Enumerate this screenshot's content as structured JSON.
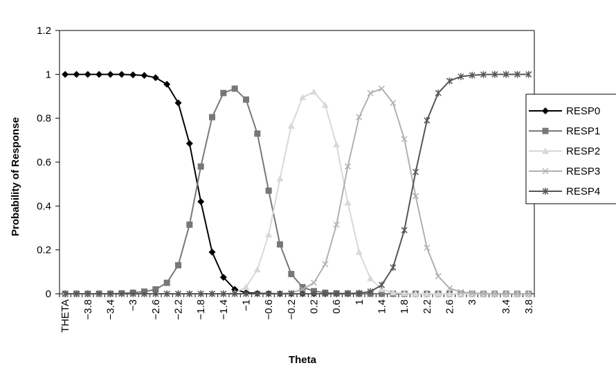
{
  "chart_data": {
    "type": "line",
    "xlabel": "Theta",
    "ylabel": "Probability of Response",
    "ylim": [
      0,
      1.2
    ],
    "y_ticks": [
      "0",
      "0.2",
      "0.4",
      "0.6",
      "0.8",
      "1",
      "1.2"
    ],
    "x_tick_labels": [
      "THETA",
      "−3.8",
      "−3.4",
      "−3",
      "−2.6",
      "−2.2",
      "−1.8",
      "−1.4",
      "−1",
      "−0.6",
      "−0.2",
      "0.2",
      "0.6",
      "1",
      "1.4",
      "1.8",
      "2.2",
      "2.6",
      "3",
      "3.4",
      "3.8"
    ],
    "x_tick_positions": [
      0,
      2,
      4,
      6,
      8,
      10,
      12,
      14,
      16,
      18,
      20,
      22,
      24,
      26,
      28,
      30,
      32,
      34,
      36,
      39,
      41
    ],
    "grid": false,
    "legend_position": "right",
    "series": [
      {
        "name": "RESP0",
        "marker": "diamond",
        "color": "#000000",
        "values": [
          1.0,
          1.0,
          1.0,
          1.0,
          1.0,
          1.0,
          0.998,
          0.995,
          0.985,
          0.955,
          0.87,
          0.685,
          0.42,
          0.19,
          0.075,
          0.02,
          0.005,
          0.002,
          0.001,
          0,
          0,
          0,
          0,
          0,
          0,
          0,
          0,
          0,
          0,
          0,
          0,
          0,
          0,
          0,
          0,
          0,
          0,
          0,
          0,
          0,
          0,
          0
        ]
      },
      {
        "name": "RESP1",
        "marker": "square",
        "color": "#777777",
        "values": [
          0,
          0,
          0,
          0,
          0,
          0.002,
          0.005,
          0.01,
          0.02,
          0.05,
          0.13,
          0.315,
          0.58,
          0.805,
          0.915,
          0.935,
          0.885,
          0.73,
          0.47,
          0.225,
          0.09,
          0.03,
          0.012,
          0.005,
          0.002,
          0.001,
          0,
          0,
          0,
          0,
          0,
          0,
          0,
          0,
          0,
          0,
          0,
          0,
          0,
          0,
          0,
          0
        ]
      },
      {
        "name": "RESP2",
        "marker": "triangle",
        "color": "#d8d8d8",
        "values": [
          0,
          0,
          0,
          0,
          0,
          0,
          0,
          0,
          0,
          0,
          0,
          0,
          0,
          0,
          0,
          0.005,
          0.03,
          0.11,
          0.27,
          0.525,
          0.765,
          0.895,
          0.92,
          0.86,
          0.68,
          0.415,
          0.19,
          0.07,
          0.02,
          0.005,
          0.002,
          0,
          0,
          0,
          0,
          0,
          0,
          0,
          0,
          0,
          0,
          0
        ]
      },
      {
        "name": "RESP3",
        "marker": "x",
        "color": "#b0b0b0",
        "values": [
          0,
          0,
          0,
          0,
          0,
          0,
          0,
          0,
          0,
          0,
          0,
          0,
          0,
          0,
          0,
          0,
          0,
          0,
          0,
          0,
          0.005,
          0.02,
          0.05,
          0.135,
          0.315,
          0.58,
          0.805,
          0.915,
          0.935,
          0.87,
          0.705,
          0.445,
          0.21,
          0.08,
          0.025,
          0.008,
          0.003,
          0.001,
          0,
          0,
          0,
          0
        ]
      },
      {
        "name": "RESP4",
        "marker": "asterisk",
        "color": "#555555",
        "values": [
          0,
          0,
          0,
          0,
          0,
          0,
          0,
          0,
          0,
          0,
          0,
          0,
          0,
          0,
          0,
          0,
          0,
          0,
          0,
          0,
          0,
          0,
          0,
          0,
          0,
          0.001,
          0.003,
          0.01,
          0.04,
          0.12,
          0.29,
          0.555,
          0.79,
          0.915,
          0.97,
          0.99,
          0.996,
          0.999,
          1.0,
          1.0,
          1.0,
          1.0
        ]
      }
    ]
  }
}
